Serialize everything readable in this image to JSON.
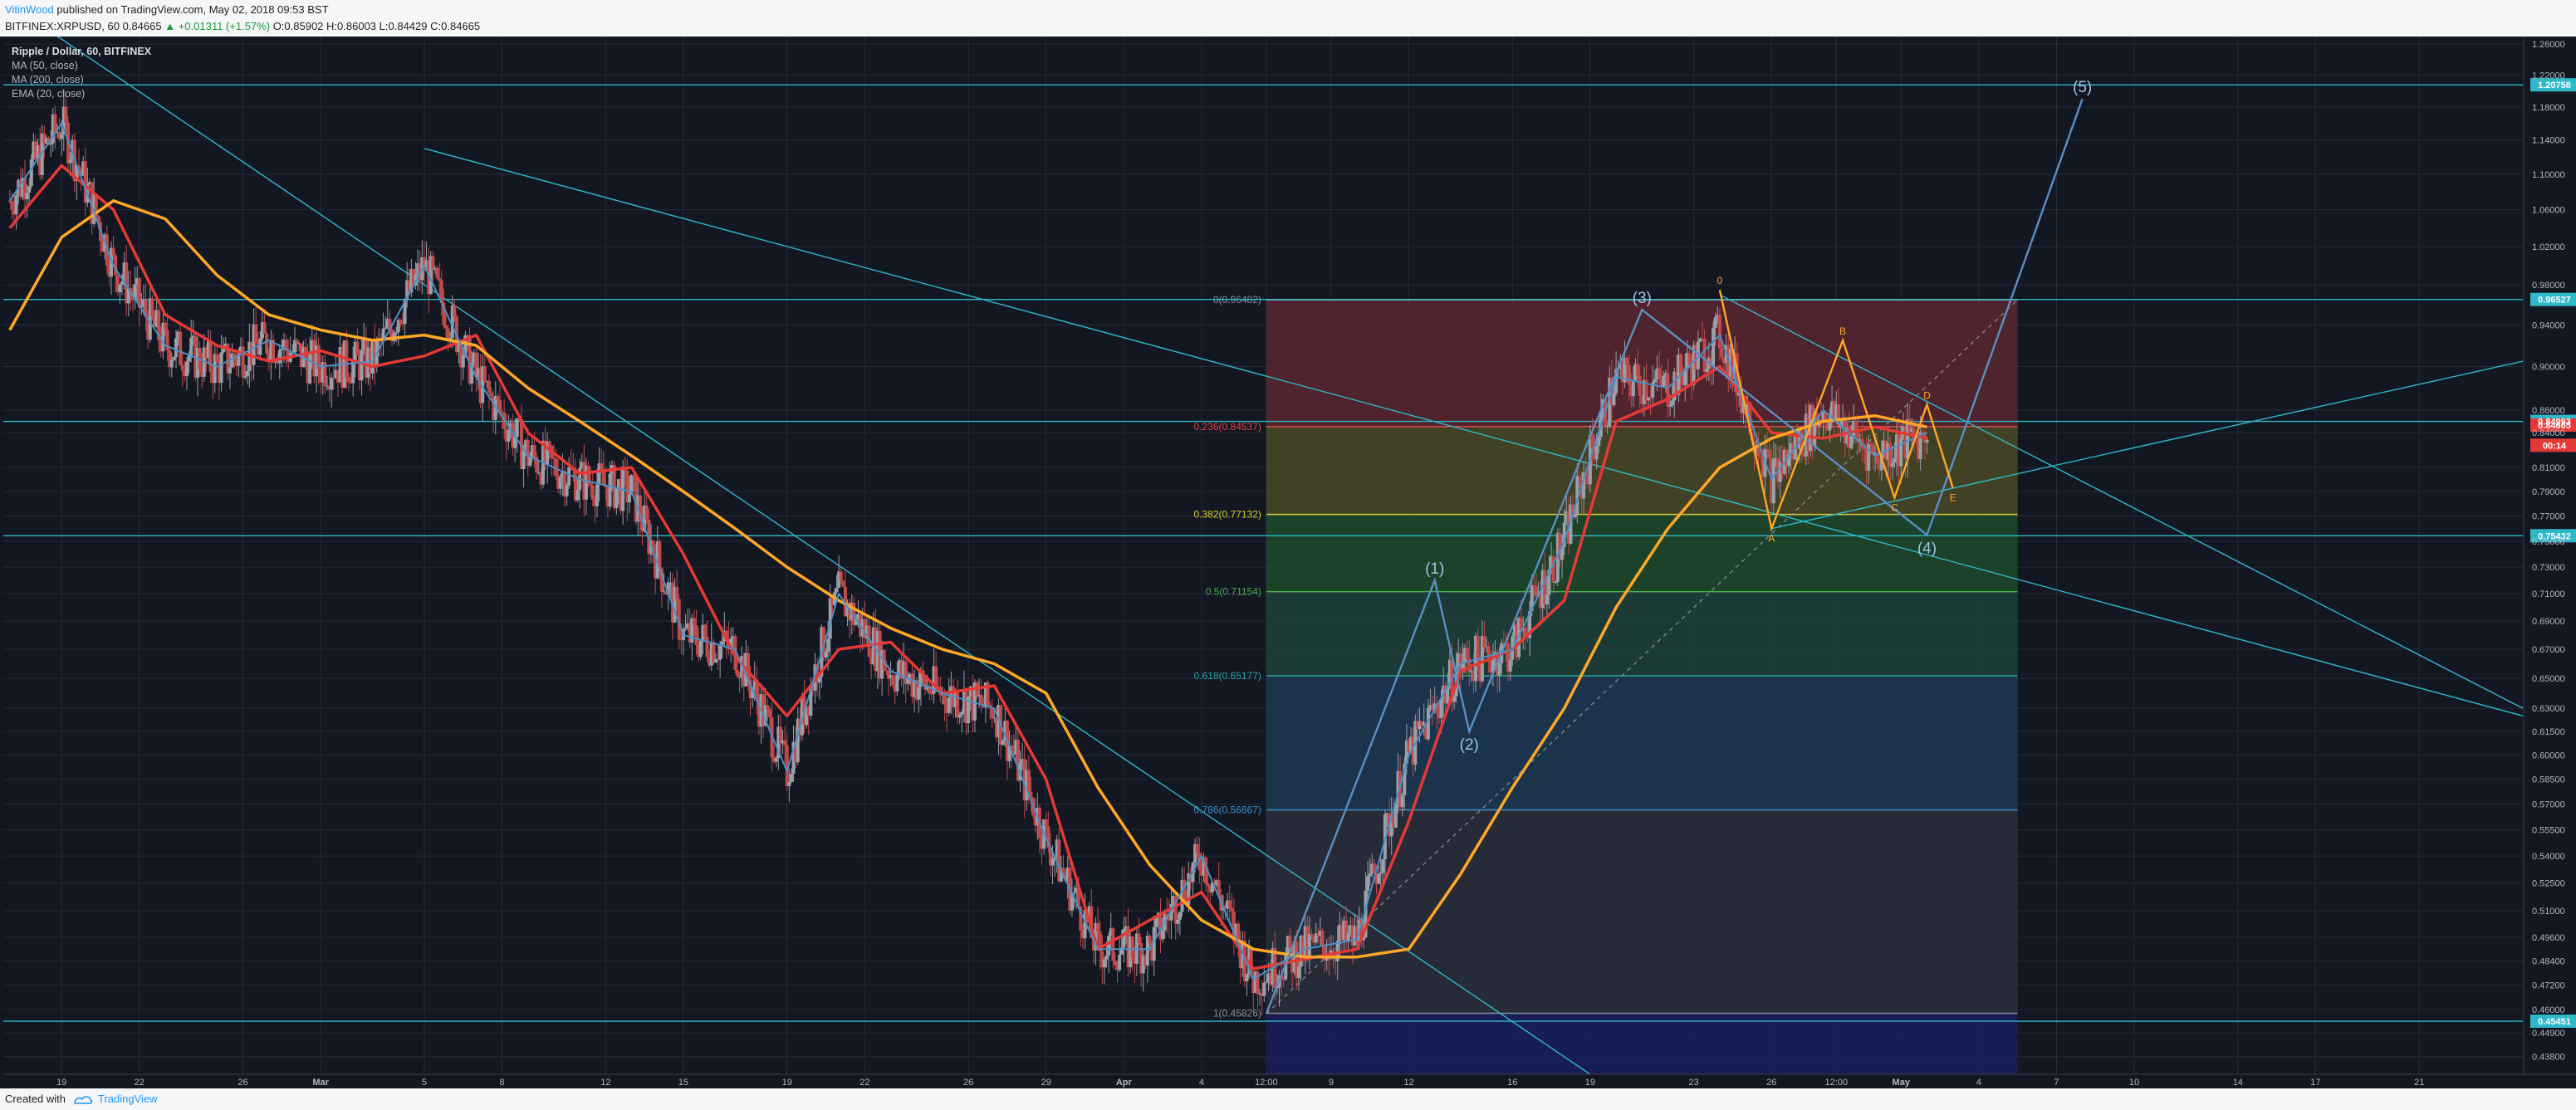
{
  "header": {
    "user": "VitinWood",
    "published": "published on TradingView.com, May 02, 2018 09:53 BST",
    "ticker": "BITFINEX:XRPUSD, 60",
    "last": "0.84665",
    "change": "▲ +0.01311 (+1.57%)",
    "ohlc_open": "O:0.85902",
    "ohlc_high": "H:0.86003",
    "ohlc_low": "L:0.84429",
    "ohlc_close": "C:0.84665"
  },
  "legend": {
    "title": "Ripple / Dollar, 60, BITFINEX",
    "items": [
      "MA (50, close)",
      "MA (200, close)",
      "EMA (20, close)"
    ]
  },
  "footer": {
    "created_with": "Created with",
    "brand": "TradingView"
  },
  "colors": {
    "background": "#131722",
    "grid": "#262b39",
    "trendline": "#2fb8c8",
    "ma50": "#e53935",
    "ma200": "#ffa726",
    "ema20": "#4a90c8",
    "elliott": "#5b8fc5",
    "pattern": "#ffa726",
    "candle_up": "#9aa0aa",
    "candle_down": "#c14a4a"
  },
  "chart_data": {
    "type": "line",
    "title": "Ripple / Dollar, 60, BITFINEX",
    "y_scale": "log",
    "ylim": [
      0.43,
      1.27
    ],
    "y_ticks": [
      "1.26000",
      "1.22000",
      "1.18000",
      "1.14000",
      "1.10000",
      "1.06000",
      "1.02000",
      "0.98000",
      "0.94000",
      "0.90000",
      "0.86000",
      "0.84000",
      "0.81000",
      "0.79000",
      "0.77000",
      "0.75000",
      "0.73000",
      "0.71000",
      "0.69000",
      "0.67000",
      "0.65000",
      "0.63000",
      "0.61500",
      "0.60000",
      "0.58500",
      "0.57000",
      "0.55500",
      "0.54000",
      "0.52500",
      "0.51000",
      "0.49600",
      "0.48400",
      "0.47200",
      "0.46000",
      "0.44900",
      "0.43800"
    ],
    "x_ticks": [
      {
        "label": "19",
        "date": "2018-02-19"
      },
      {
        "label": "22",
        "date": "2018-02-22"
      },
      {
        "label": "26",
        "date": "2018-02-26"
      },
      {
        "label": "Mar",
        "date": "2018-03-01"
      },
      {
        "label": "5",
        "date": "2018-03-05"
      },
      {
        "label": "8",
        "date": "2018-03-08"
      },
      {
        "label": "12",
        "date": "2018-03-12"
      },
      {
        "label": "15",
        "date": "2018-03-15"
      },
      {
        "label": "19",
        "date": "2018-03-19"
      },
      {
        "label": "22",
        "date": "2018-03-22"
      },
      {
        "label": "26",
        "date": "2018-03-26"
      },
      {
        "label": "29",
        "date": "2018-03-29"
      },
      {
        "label": "Apr",
        "date": "2018-04-01"
      },
      {
        "label": "4",
        "date": "2018-04-04"
      },
      {
        "label": "12:00",
        "date": "2018-04-06T12:00"
      },
      {
        "label": "9",
        "date": "2018-04-09"
      },
      {
        "label": "12",
        "date": "2018-04-12"
      },
      {
        "label": "16",
        "date": "2018-04-16"
      },
      {
        "label": "19",
        "date": "2018-04-19"
      },
      {
        "label": "23",
        "date": "2018-04-23"
      },
      {
        "label": "26",
        "date": "2018-04-26"
      },
      {
        "label": "12:00",
        "date": "2018-04-28T12:00"
      },
      {
        "label": "May",
        "date": "2018-05-01"
      },
      {
        "label": "4",
        "date": "2018-05-04"
      },
      {
        "label": "7",
        "date": "2018-05-07"
      },
      {
        "label": "10",
        "date": "2018-05-10"
      },
      {
        "label": "14",
        "date": "2018-05-14"
      },
      {
        "label": "17",
        "date": "2018-05-17"
      },
      {
        "label": "21",
        "date": "2018-05-21"
      }
    ],
    "x_range": [
      "2018-02-16T18:00",
      "2018-05-25T00:00"
    ],
    "price_markers": [
      {
        "label": "1.20758",
        "y": 1.20758
      },
      {
        "label": "0.96527",
        "y": 0.96527
      },
      {
        "label": "0.84993",
        "y": 0.84993
      },
      {
        "label": "0.84665",
        "y": 0.84665
      },
      {
        "label": "00:14",
        "y": 0.829
      },
      {
        "label": "0.75432",
        "y": 0.75432
      },
      {
        "label": "0.45451",
        "y": 0.45451
      }
    ],
    "horizontal_levels": [
      1.20758,
      0.96527,
      0.84993,
      0.75432,
      0.45451
    ],
    "fibonacci": {
      "date_range": [
        "2018-04-06T12:00",
        "2018-05-05T12:00"
      ],
      "levels": [
        {
          "label": "0(0.96482)",
          "ratio": 0,
          "y": 0.96482,
          "color": "#8a8f9a",
          "fill": "#5a2730"
        },
        {
          "label": "0.236(0.84537)",
          "ratio": 0.236,
          "y": 0.84537,
          "color": "#e0464a",
          "fill": "#4a4a26"
        },
        {
          "label": "0.382(0.77132)",
          "ratio": 0.382,
          "y": 0.77132,
          "color": "#d9cf3a",
          "fill": "#1f4a2b"
        },
        {
          "label": "0.5(0.71154)",
          "ratio": 0.5,
          "y": 0.71154,
          "color": "#4caf50",
          "fill": "#1e423a"
        },
        {
          "label": "0.618(0.65177)",
          "ratio": 0.618,
          "y": 0.65177,
          "color": "#26a69a",
          "fill": "#1e3a52"
        },
        {
          "label": "0.786(0.56667)",
          "ratio": 0.786,
          "y": 0.56667,
          "color": "#3d8fd1",
          "fill": "#2c2f3b"
        },
        {
          "label": "1(0.45826)",
          "ratio": 1,
          "y": 0.45826,
          "color": "#8a8f9a",
          "fill": "#1a1f5c"
        }
      ]
    },
    "series": [
      {
        "name": "MA (50, close)",
        "color": "#e53935",
        "points": [
          [
            "2018-02-17",
            1.04
          ],
          [
            "2018-02-19",
            1.11
          ],
          [
            "2018-02-21",
            1.06
          ],
          [
            "2018-02-23",
            0.95
          ],
          [
            "2018-02-25",
            0.92
          ],
          [
            "2018-02-27",
            0.905
          ],
          [
            "2018-03-01",
            0.915
          ],
          [
            "2018-03-03",
            0.9
          ],
          [
            "2018-03-05",
            0.91
          ],
          [
            "2018-03-07",
            0.93
          ],
          [
            "2018-03-09",
            0.84
          ],
          [
            "2018-03-11",
            0.805
          ],
          [
            "2018-03-13",
            0.81
          ],
          [
            "2018-03-15",
            0.74
          ],
          [
            "2018-03-17",
            0.665
          ],
          [
            "2018-03-19",
            0.625
          ],
          [
            "2018-03-21",
            0.67
          ],
          [
            "2018-03-23",
            0.675
          ],
          [
            "2018-03-25",
            0.64
          ],
          [
            "2018-03-27",
            0.645
          ],
          [
            "2018-03-29",
            0.585
          ],
          [
            "2018-03-31",
            0.49
          ],
          [
            "2018-04-02",
            0.505
          ],
          [
            "2018-04-04",
            0.52
          ],
          [
            "2018-04-06",
            0.48
          ],
          [
            "2018-04-08",
            0.485
          ],
          [
            "2018-04-10",
            0.49
          ],
          [
            "2018-04-12",
            0.56
          ],
          [
            "2018-04-14",
            0.655
          ],
          [
            "2018-04-16",
            0.67
          ],
          [
            "2018-04-18",
            0.705
          ],
          [
            "2018-04-20",
            0.85
          ],
          [
            "2018-04-22",
            0.87
          ],
          [
            "2018-04-24",
            0.9
          ],
          [
            "2018-04-26",
            0.84
          ],
          [
            "2018-04-28",
            0.835
          ],
          [
            "2018-04-30",
            0.845
          ],
          [
            "2018-05-02",
            0.835
          ]
        ]
      },
      {
        "name": "MA (200, close)",
        "color": "#ffa726",
        "points": [
          [
            "2018-02-17",
            0.935
          ],
          [
            "2018-02-19",
            1.03
          ],
          [
            "2018-02-21",
            1.07
          ],
          [
            "2018-02-23",
            1.05
          ],
          [
            "2018-02-25",
            0.99
          ],
          [
            "2018-02-27",
            0.95
          ],
          [
            "2018-03-01",
            0.935
          ],
          [
            "2018-03-03",
            0.925
          ],
          [
            "2018-03-05",
            0.93
          ],
          [
            "2018-03-07",
            0.92
          ],
          [
            "2018-03-09",
            0.88
          ],
          [
            "2018-03-11",
            0.85
          ],
          [
            "2018-03-13",
            0.82
          ],
          [
            "2018-03-15",
            0.79
          ],
          [
            "2018-03-17",
            0.76
          ],
          [
            "2018-03-19",
            0.73
          ],
          [
            "2018-03-21",
            0.705
          ],
          [
            "2018-03-23",
            0.685
          ],
          [
            "2018-03-25",
            0.67
          ],
          [
            "2018-03-27",
            0.66
          ],
          [
            "2018-03-29",
            0.64
          ],
          [
            "2018-03-31",
            0.58
          ],
          [
            "2018-04-02",
            0.535
          ],
          [
            "2018-04-04",
            0.505
          ],
          [
            "2018-04-06",
            0.49
          ],
          [
            "2018-04-08",
            0.486
          ],
          [
            "2018-04-10",
            0.486
          ],
          [
            "2018-04-12",
            0.49
          ],
          [
            "2018-04-14",
            0.53
          ],
          [
            "2018-04-16",
            0.58
          ],
          [
            "2018-04-18",
            0.63
          ],
          [
            "2018-04-20",
            0.7
          ],
          [
            "2018-04-22",
            0.76
          ],
          [
            "2018-04-24",
            0.81
          ],
          [
            "2018-04-26",
            0.835
          ],
          [
            "2018-04-28",
            0.85
          ],
          [
            "2018-04-30",
            0.855
          ],
          [
            "2018-05-02",
            0.845
          ]
        ]
      },
      {
        "name": "EMA (20, close)",
        "color": "#4a90c8",
        "points": [
          [
            "2018-02-17",
            1.07
          ],
          [
            "2018-02-19",
            1.16
          ],
          [
            "2018-02-21",
            1.0
          ],
          [
            "2018-02-23",
            0.92
          ],
          [
            "2018-02-25",
            0.9
          ],
          [
            "2018-02-27",
            0.925
          ],
          [
            "2018-03-01",
            0.9
          ],
          [
            "2018-03-03",
            0.905
          ],
          [
            "2018-03-05",
            1.0
          ],
          [
            "2018-03-07",
            0.89
          ],
          [
            "2018-03-09",
            0.82
          ],
          [
            "2018-03-11",
            0.8
          ],
          [
            "2018-03-13",
            0.79
          ],
          [
            "2018-03-15",
            0.68
          ],
          [
            "2018-03-17",
            0.67
          ],
          [
            "2018-03-19",
            0.59
          ],
          [
            "2018-03-21",
            0.71
          ],
          [
            "2018-03-23",
            0.655
          ],
          [
            "2018-03-25",
            0.64
          ],
          [
            "2018-03-27",
            0.63
          ],
          [
            "2018-03-29",
            0.55
          ],
          [
            "2018-03-31",
            0.49
          ],
          [
            "2018-04-02",
            0.49
          ],
          [
            "2018-04-04",
            0.54
          ],
          [
            "2018-04-06",
            0.475
          ],
          [
            "2018-04-08",
            0.49
          ],
          [
            "2018-04-10",
            0.495
          ],
          [
            "2018-04-12",
            0.6
          ],
          [
            "2018-04-14",
            0.66
          ],
          [
            "2018-04-16",
            0.67
          ],
          [
            "2018-04-18",
            0.75
          ],
          [
            "2018-04-20",
            0.89
          ],
          [
            "2018-04-22",
            0.88
          ],
          [
            "2018-04-24",
            0.93
          ],
          [
            "2018-04-26",
            0.8
          ],
          [
            "2018-04-28",
            0.86
          ],
          [
            "2018-04-30",
            0.82
          ],
          [
            "2018-05-02",
            0.84
          ]
        ]
      }
    ],
    "trendlines": [
      {
        "from": [
          "2018-02-18",
          1.29
        ],
        "to": [
          "2018-04-19",
          0.43
        ]
      },
      {
        "from": [
          "2018-03-05",
          1.13
        ],
        "to": [
          "2018-05-25",
          0.625
        ]
      },
      {
        "from": [
          "2018-04-24",
          0.97
        ],
        "to": [
          "2018-05-25",
          0.63
        ]
      },
      {
        "from": [
          "2018-04-26",
          0.76
        ],
        "to": [
          "2018-05-25",
          0.905
        ]
      }
    ],
    "elliott_wave": [
      {
        "label": "",
        "x": "2018-04-06T12:00",
        "y": 0.458
      },
      {
        "label": "(1)",
        "x": "2018-04-13",
        "y": 0.72
      },
      {
        "label": "(2)",
        "x": "2018-04-14T08:00",
        "y": 0.615
      },
      {
        "label": "(3)",
        "x": "2018-04-21",
        "y": 0.955
      },
      {
        "label": "(4)",
        "x": "2018-05-02",
        "y": 0.755
      },
      {
        "label": "(5)",
        "x": "2018-05-08",
        "y": 1.19
      }
    ],
    "pattern": [
      {
        "label": "0",
        "x": "2018-04-24",
        "y": 0.975
      },
      {
        "label": "A",
        "x": "2018-04-26",
        "y": 0.76
      },
      {
        "label": "B",
        "x": "2018-04-28T18:00",
        "y": 0.925
      },
      {
        "label": "C",
        "x": "2018-04-30T18:00",
        "y": 0.785
      },
      {
        "label": "D",
        "x": "2018-05-02",
        "y": 0.865
      },
      {
        "label": "E",
        "x": "2018-05-03",
        "y": 0.793
      }
    ]
  }
}
